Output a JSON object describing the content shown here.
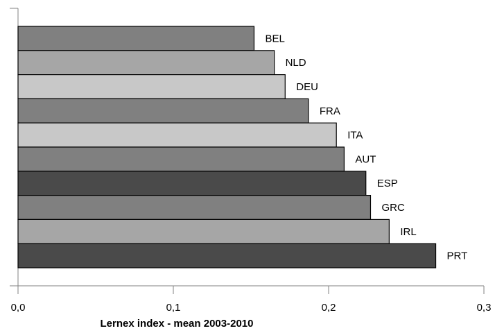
{
  "chart_data": {
    "type": "bar",
    "orientation": "horizontal",
    "categories": [
      "BEL",
      "NLD",
      "DEU",
      "FRA",
      "ITA",
      "AUT",
      "ESP",
      "GRC",
      "IRL",
      "PRT"
    ],
    "values": [
      0.152,
      0.165,
      0.172,
      0.187,
      0.205,
      0.21,
      0.224,
      0.227,
      0.239,
      0.269
    ],
    "bar_colors": [
      "#808080",
      "#a6a6a6",
      "#c8c8c8",
      "#808080",
      "#c8c8c8",
      "#808080",
      "#4a4a4a",
      "#808080",
      "#a6a6a6",
      "#4a4a4a"
    ],
    "xlabel": "Lernex index -  mean 2003-2010",
    "ylabel": "",
    "title": "",
    "xlim": [
      0,
      0.3
    ],
    "xticks": [
      "0,0",
      "0,1",
      "0,2",
      "0,3"
    ],
    "grid": false,
    "legend": "none",
    "data_labels": "category names at bar ends"
  }
}
